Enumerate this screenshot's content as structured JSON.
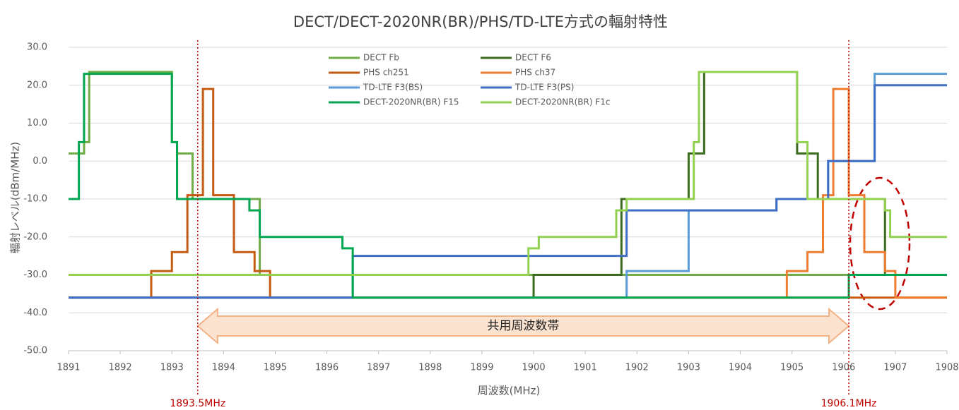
{
  "chart_data": {
    "type": "line",
    "title": "DECT/DECT-2020NR(BR)/PHS/TD-LTE方式の輻射特性",
    "x_label": "周波数(MHz)",
    "y_label": "輻射レベル(dBm/MHz)",
    "xlim": [
      1891,
      1908
    ],
    "xticks": [
      1891,
      1892,
      1893,
      1894,
      1895,
      1896,
      1897,
      1898,
      1899,
      1900,
      1901,
      1902,
      1903,
      1904,
      1905,
      1906,
      1907,
      1908
    ],
    "ylim": [
      -50,
      30
    ],
    "yticks": [
      {
        "value": -50,
        "label": "-50.0"
      },
      {
        "value": -40,
        "label": "-40.0"
      },
      {
        "value": -30,
        "label": "-30.0"
      },
      {
        "value": -20,
        "label": "-20.0"
      },
      {
        "value": -10,
        "label": "-10.0"
      },
      {
        "value": 0,
        "label": "0.0"
      },
      {
        "value": 10,
        "label": "10.0"
      },
      {
        "value": 20,
        "label": "20.0"
      },
      {
        "value": 30,
        "label": "30.0"
      }
    ],
    "grid": true,
    "legend": "top",
    "series": [
      {
        "name": "DECT Fb",
        "color": "#70ad47",
        "x": [
          1891,
          1891.3,
          1891.3,
          1891.4,
          1891.4,
          1893,
          1893,
          1893.1,
          1893.1,
          1893.4,
          1893.4,
          1894.7,
          1894.7,
          1908
        ],
        "values": [
          2,
          2,
          5,
          5,
          23.5,
          23.5,
          5,
          5,
          2,
          2,
          -10,
          -10,
          -30,
          -30
        ]
      },
      {
        "name": "DECT F6",
        "color": "#3a6b1f",
        "x": [
          1891,
          1900,
          1900,
          1901.7,
          1901.7,
          1903,
          1903,
          1903.3,
          1903.3,
          1905.1,
          1905.1,
          1905.5,
          1905.5,
          1906.8,
          1906.8,
          1908
        ],
        "values": [
          -36,
          -36,
          -30,
          -30,
          -10,
          -10,
          2,
          2,
          23.5,
          23.5,
          2,
          2,
          -10,
          -10,
          -30,
          -30
        ]
      },
      {
        "name": "PHS ch251",
        "color": "#c55a11",
        "x": [
          1891,
          1892.6,
          1892.6,
          1893,
          1893,
          1893.3,
          1893.3,
          1893.6,
          1893.6,
          1893.8,
          1893.8,
          1894.2,
          1894.2,
          1894.6,
          1894.6,
          1894.9,
          1894.9,
          1908
        ],
        "values": [
          -36,
          -36,
          -29,
          -29,
          -24,
          -24,
          -9,
          -9,
          19,
          19,
          -9,
          -9,
          -24,
          -24,
          -29,
          -29,
          -36,
          -36
        ]
      },
      {
        "name": "PHS ch37",
        "color": "#ed7d31",
        "x": [
          1891,
          1904.9,
          1904.9,
          1905.3,
          1905.3,
          1905.6,
          1905.6,
          1905.8,
          1905.8,
          1906.1,
          1906.1,
          1906.4,
          1906.4,
          1906.8,
          1906.8,
          1907,
          1907,
          1908
        ],
        "values": [
          -36,
          -36,
          -29,
          -29,
          -24,
          -24,
          -9,
          -9,
          19,
          19,
          -9,
          -9,
          -24,
          -24,
          -29,
          -29,
          -36,
          -36
        ]
      },
      {
        "name": "TD-LTE F3(BS)",
        "color": "#5b9bd5",
        "x": [
          1891,
          1901.8,
          1901.8,
          1903,
          1903,
          1904.7,
          1904.7,
          1905.7,
          1905.7,
          1906.6,
          1906.6,
          1908
        ],
        "values": [
          -36,
          -36,
          -29,
          -29,
          -13,
          -13,
          -10,
          -10,
          0,
          0,
          23,
          23
        ]
      },
      {
        "name": "TD-LTE F3(PS)",
        "color": "#3f6fc4",
        "x": [
          1891,
          1896.5,
          1896.5,
          1901.8,
          1901.8,
          1904.7,
          1904.7,
          1905.7,
          1905.7,
          1906.6,
          1906.6,
          1908
        ],
        "values": [
          -36,
          -36,
          -25,
          -25,
          -13,
          -13,
          -10,
          -10,
          0,
          0,
          20,
          20
        ]
      },
      {
        "name": "DECT-2020NR(BR) F15",
        "color": "#00a650",
        "x": [
          1891,
          1891.2,
          1891.2,
          1891.3,
          1891.3,
          1893,
          1893,
          1893.1,
          1893.1,
          1894.5,
          1894.5,
          1894.7,
          1894.7,
          1896.3,
          1896.3,
          1896.5,
          1896.5,
          1906.1,
          1906.1,
          1908
        ],
        "values": [
          -10,
          -10,
          5,
          5,
          23,
          23,
          5,
          5,
          -10,
          -10,
          -13,
          -13,
          -20,
          -20,
          -23,
          -23,
          -36,
          -36,
          -30,
          -30
        ]
      },
      {
        "name": "DECT-2020NR(BR) F1c",
        "color": "#92d050",
        "x": [
          1891,
          1899.9,
          1899.9,
          1900.1,
          1900.1,
          1901.6,
          1901.6,
          1901.8,
          1901.8,
          1903.1,
          1903.1,
          1903.2,
          1903.2,
          1905.1,
          1905.1,
          1905.3,
          1905.3,
          1906.8,
          1906.8,
          1906.9,
          1906.9,
          1908
        ],
        "values": [
          -30,
          -30,
          -23,
          -23,
          -20,
          -20,
          -13,
          -13,
          -10,
          -10,
          5,
          5,
          23.5,
          23.5,
          5,
          5,
          -10,
          -10,
          -13,
          -13,
          -20,
          -20
        ]
      }
    ],
    "annotations": [
      {
        "text": "1893.5MHz",
        "x": 1893.5,
        "color": "#c00000"
      },
      {
        "text": "1906.1MHz",
        "x": 1906.1,
        "color": "#c00000"
      }
    ],
    "arrow": {
      "text": "共用周波数帯",
      "x_start": 1893.5,
      "x_end": 1906.1
    }
  }
}
